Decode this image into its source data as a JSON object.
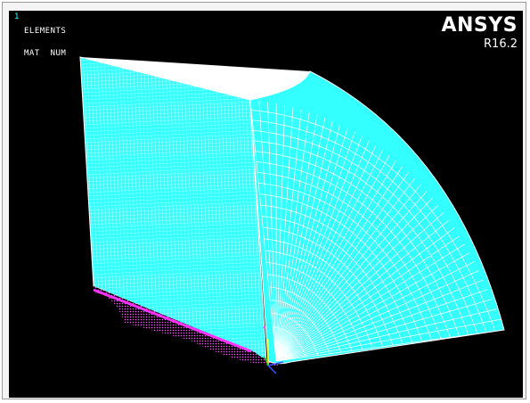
{
  "viewport": {
    "window_number": "1",
    "plot_type": "ELEMENTS",
    "plot_subtitle": "MAT  NUM",
    "brand": "ANSYS",
    "release": "R16.2"
  },
  "colors": {
    "background": "#000000",
    "mesh_material_1": "#33ffff",
    "mesh_material_2": "#ff33ff",
    "mesh_lines": "#ffffff",
    "triad_x": "#3355ff",
    "triad_y": "#ffff00",
    "triad_z": "#33cc33"
  }
}
